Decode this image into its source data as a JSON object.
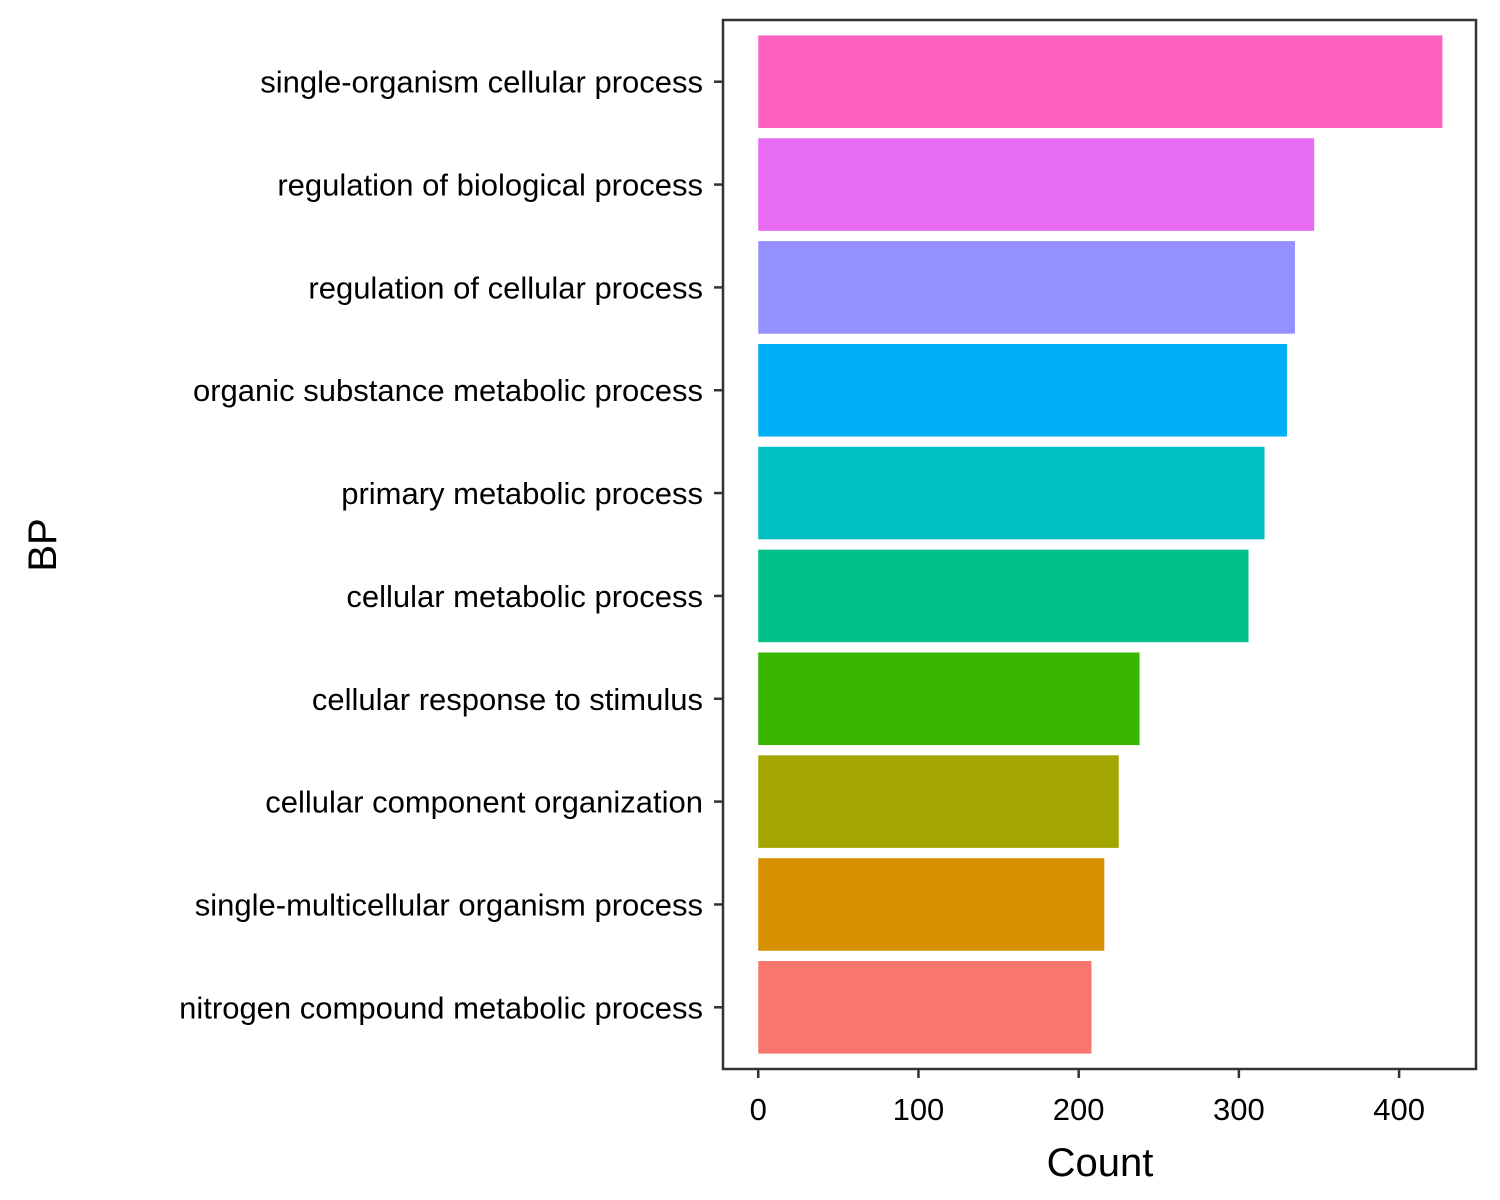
{
  "chart_data": {
    "type": "bar",
    "orientation": "horizontal",
    "title": "",
    "xlabel": "Count",
    "ylabel": "BP",
    "xlim": [
      -22,
      448
    ],
    "xticks": [
      0,
      100,
      200,
      300,
      400
    ],
    "grid": false,
    "legend": "none",
    "categories": [
      "single-organism cellular process",
      "regulation of biological process",
      "regulation of cellular process",
      "organic substance metabolic process",
      "primary metabolic process",
      "cellular metabolic process",
      "cellular response to stimulus",
      "cellular component organization",
      "single-multicellular organism process",
      "nitrogen compound metabolic process"
    ],
    "values": [
      427,
      347,
      335,
      330,
      316,
      306,
      238,
      225,
      216,
      208
    ],
    "colors": [
      "#FF61C3",
      "#E76BF3",
      "#9590FF",
      "#00B0F6",
      "#00BFC4",
      "#00C08B",
      "#39B600",
      "#A3A500",
      "#D89000",
      "#F8766D"
    ]
  }
}
